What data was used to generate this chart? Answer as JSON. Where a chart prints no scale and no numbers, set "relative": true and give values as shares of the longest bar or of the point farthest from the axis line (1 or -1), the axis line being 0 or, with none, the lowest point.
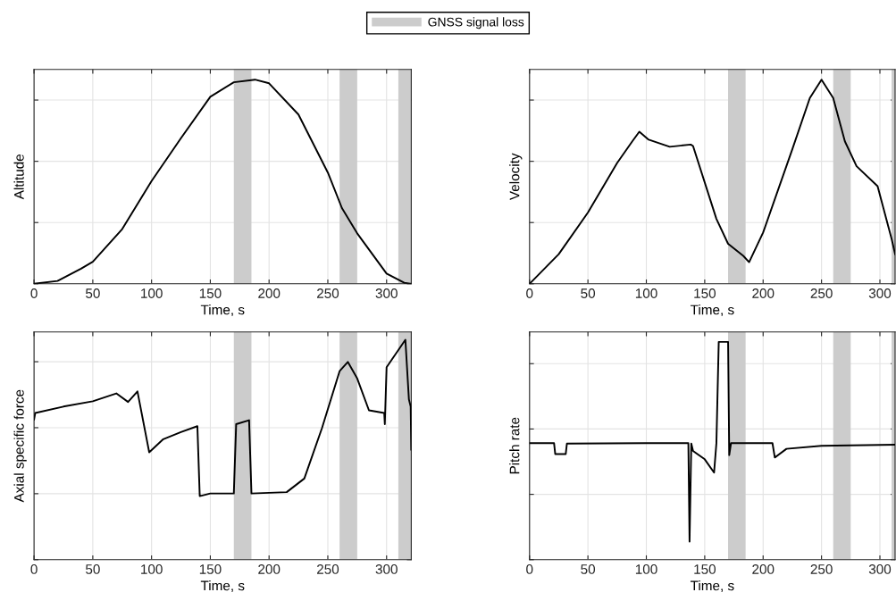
{
  "chart_data": [
    {
      "type": "line",
      "xlabel": "Time, s",
      "ylabel": "Altitude",
      "relative": true,
      "xlim": [
        0,
        321
      ],
      "xticks": [
        0,
        50,
        100,
        150,
        200,
        250,
        300
      ],
      "tick_labels": "x",
      "grid": true,
      "legend": "top",
      "bands": [
        {
          "axis": "x",
          "from": 170,
          "to": 185,
          "label": "GNSS signal loss",
          "color": "#cccccc"
        },
        {
          "axis": "x",
          "from": 260,
          "to": 275,
          "color": "#cccccc"
        },
        {
          "axis": "x",
          "from": 310,
          "to": 321,
          "color": "#cccccc"
        }
      ],
      "series": [
        {
          "color": "#000000",
          "x": [
            0,
            20,
            40,
            50,
            75,
            100,
            125,
            150,
            170,
            188,
            200,
            225,
            250,
            262,
            275,
            300,
            315,
            321
          ],
          "values": [
            0,
            0.014,
            0.074,
            0.108,
            0.268,
            0.503,
            0.713,
            0.916,
            0.987,
            1,
            0.982,
            0.829,
            0.545,
            0.371,
            0.247,
            0.05,
            0.005,
            0
          ]
        }
      ]
    },
    {
      "type": "line",
      "xlabel": "Time, s",
      "ylabel": "Velocity",
      "relative": true,
      "xlim": [
        0,
        313
      ],
      "xticks": [
        0,
        50,
        100,
        150,
        200,
        250,
        300
      ],
      "tick_labels": "x",
      "grid": true,
      "bands": [
        {
          "axis": "x",
          "from": 170,
          "to": 185,
          "color": "#cccccc"
        },
        {
          "axis": "x",
          "from": 260,
          "to": 275,
          "color": "#cccccc"
        },
        {
          "axis": "x",
          "from": 310,
          "to": 321,
          "color": "#cccccc"
        }
      ],
      "series": [
        {
          "color": "#000000",
          "x": [
            0,
            25,
            50,
            75,
            88,
            94,
            102,
            120,
            138,
            140,
            160,
            170,
            183,
            188,
            200,
            225,
            240,
            250,
            260,
            270,
            280,
            298,
            310,
            313
          ],
          "values": [
            0,
            0.145,
            0.349,
            0.592,
            0.698,
            0.745,
            0.706,
            0.671,
            0.682,
            0.675,
            0.318,
            0.196,
            0.137,
            0.106,
            0.251,
            0.659,
            0.91,
            1,
            0.91,
            0.698,
            0.576,
            0.478,
            0.22,
            0.145
          ]
        }
      ]
    },
    {
      "type": "line",
      "xlabel": "Time, s",
      "ylabel": "Axial specific force",
      "relative": true,
      "xlim": [
        0,
        321
      ],
      "xticks": [
        0,
        50,
        100,
        150,
        200,
        250,
        300
      ],
      "tick_labels": "x",
      "grid": true,
      "bands": [
        {
          "axis": "x",
          "from": 170,
          "to": 185,
          "color": "#cccccc"
        },
        {
          "axis": "x",
          "from": 260,
          "to": 275,
          "color": "#cccccc"
        },
        {
          "axis": "x",
          "from": 310,
          "to": 321,
          "color": "#cccccc"
        }
      ],
      "series": [
        {
          "color": "#000000",
          "x": [
            0,
            1,
            25,
            50,
            70,
            80,
            88,
            98,
            110,
            125,
            139,
            141,
            150,
            170,
            172,
            183,
            185,
            215,
            230,
            245,
            260,
            267,
            275,
            285,
            298,
            298.5,
            300,
            316,
            319,
            320.5,
            321
          ],
          "values": [
            0.637,
            0.667,
            0.696,
            0.72,
            0.756,
            0.717,
            0.765,
            0.488,
            0.548,
            0.58,
            0.607,
            0.289,
            0.301,
            0.301,
            0.616,
            0.634,
            0.301,
            0.307,
            0.369,
            0.598,
            0.857,
            0.899,
            0.824,
            0.679,
            0.667,
            0.616,
            0.875,
            1,
            0.729,
            0.696,
            0.5
          ]
        }
      ]
    },
    {
      "type": "line",
      "xlabel": "Time, s",
      "ylabel": "Pitch rate",
      "relative": true,
      "xlim": [
        0,
        313
      ],
      "xticks": [
        0,
        50,
        100,
        150,
        200,
        250,
        300
      ],
      "tick_labels": "x",
      "grid": true,
      "bands": [
        {
          "axis": "x",
          "from": 170,
          "to": 185,
          "color": "#cccccc"
        },
        {
          "axis": "x",
          "from": 260,
          "to": 275,
          "color": "#cccccc"
        },
        {
          "axis": "x",
          "from": 310,
          "to": 321,
          "color": "#cccccc"
        }
      ],
      "series": [
        {
          "color": "#000000",
          "x": [
            0,
            21,
            22,
            31,
            32,
            100,
            136,
            137,
            138.5,
            140,
            150,
            158,
            160,
            162,
            170,
            171,
            172.5,
            208,
            210,
            220,
            250,
            313
          ],
          "values": [
            0.535,
            0.535,
            0.485,
            0.485,
            0.533,
            0.535,
            0.535,
            0.083,
            0.533,
            0.499,
            0.461,
            0.4,
            0.535,
            1,
            1,
            0.48,
            0.535,
            0.535,
            0.469,
            0.509,
            0.523,
            0.528
          ]
        }
      ]
    }
  ]
}
